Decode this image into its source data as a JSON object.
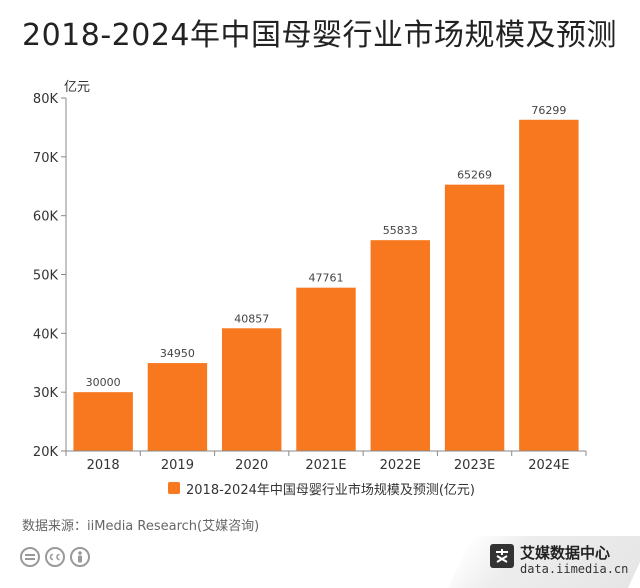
{
  "title": "2018-2024年中国母婴行业市场规模及预测",
  "source": "数据来源：iiMedia Research(艾媒咨询)",
  "brand": {
    "name": "艾媒数据中心",
    "url": "data.iimedia.cn"
  },
  "cc_icons": [
    "equals-icon",
    "cc-icon",
    "person-icon"
  ],
  "chart_data": {
    "type": "bar",
    "title": "2018-2024年中国母婴行业市场规模及预测",
    "unit_label": "亿元",
    "categories": [
      "2018",
      "2019",
      "2020",
      "2021E",
      "2022E",
      "2023E",
      "2024E"
    ],
    "series": [
      {
        "name": "2018-2024年中国母婴行业市场规模及预测(亿元)",
        "values": [
          30000,
          34950,
          40857,
          47761,
          55833,
          65269,
          76299
        ],
        "color": "#F7781E"
      }
    ],
    "ylim": [
      20000,
      80000
    ],
    "yticks": [
      20000,
      30000,
      40000,
      50000,
      60000,
      70000,
      80000
    ],
    "ytick_labels": [
      "20K",
      "30K",
      "40K",
      "50K",
      "60K",
      "70K",
      "80K"
    ],
    "grid": false,
    "legend_position": "bottom"
  }
}
